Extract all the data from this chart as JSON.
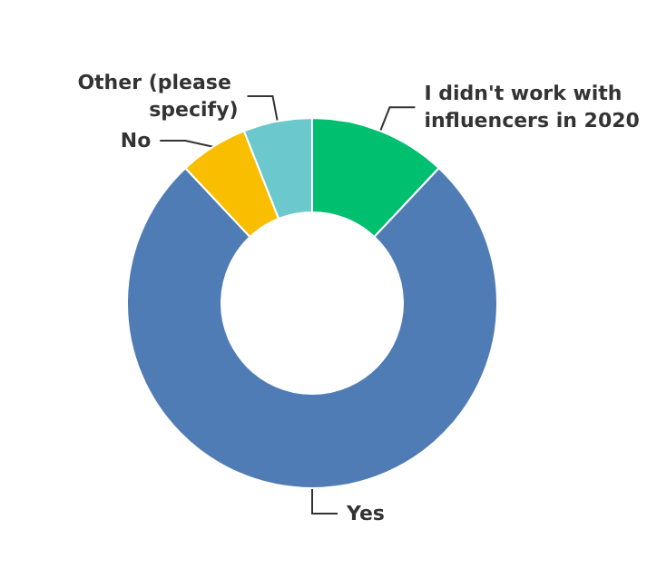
{
  "chart_data": {
    "type": "donut",
    "categories": [
      "I didn't work with influencers in 2020",
      "Yes",
      "No",
      "Other (please specify)"
    ],
    "values": [
      12,
      76,
      6,
      6
    ],
    "colors": [
      "#00bf6f",
      "#507cb6",
      "#f9be00",
      "#6bc8cd"
    ]
  }
}
